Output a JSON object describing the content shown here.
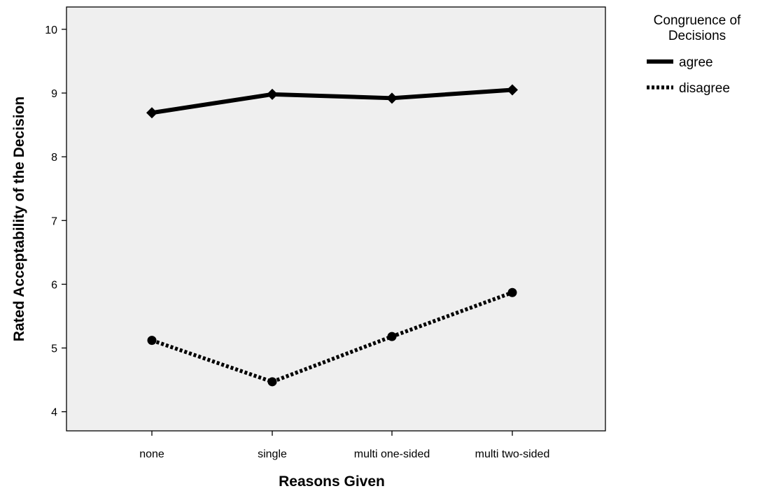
{
  "chart_data": {
    "type": "line",
    "title": "",
    "xlabel": "Reasons Given",
    "ylabel": "Rated Acceptability of the Decision",
    "categories": [
      "none",
      "single",
      "multi one-sided",
      "multi two-sided"
    ],
    "ylim": [
      3.7,
      10.35
    ],
    "yticks": [
      4,
      5,
      6,
      7,
      8,
      9,
      10
    ],
    "grid": false,
    "legend": {
      "title_lines": [
        "Congruence of",
        "Decisions"
      ],
      "placement": "right-outside-top"
    },
    "series": [
      {
        "name": "agree",
        "values": [
          8.69,
          8.98,
          8.92,
          9.05
        ],
        "marker": "diamond",
        "line_style": "solid",
        "color": "#000000"
      },
      {
        "name": "disagree",
        "values": [
          5.12,
          4.47,
          5.18,
          5.87
        ],
        "marker": "circle",
        "line_style": "dotted",
        "color": "#000000"
      }
    ],
    "plot_background": "#efefef"
  }
}
